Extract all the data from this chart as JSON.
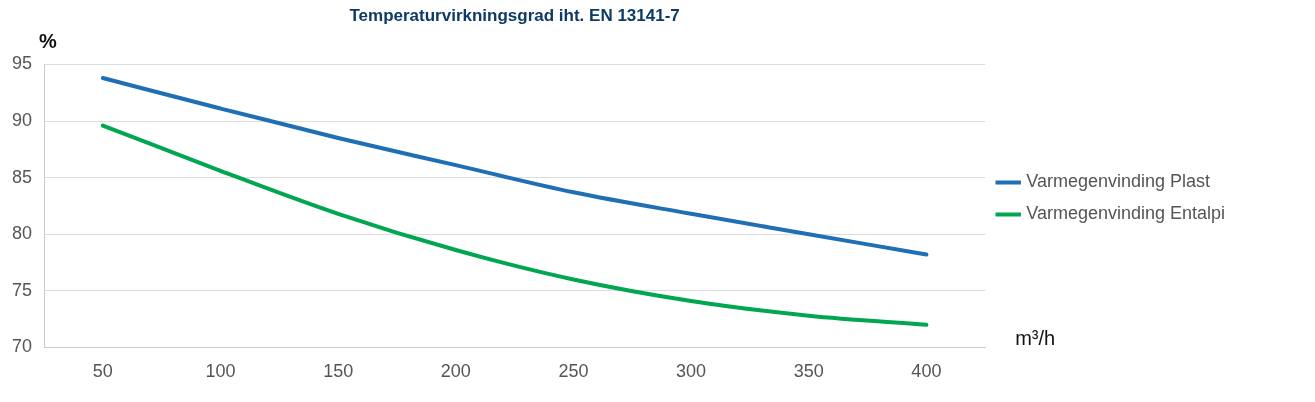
{
  "chart_data": {
    "type": "line",
    "title": "Temperaturvirkningsgrad iht. EN 13141-7",
    "xlabel": "m³/h",
    "ylabel": "%",
    "categories": [
      "50",
      "100",
      "150",
      "200",
      "250",
      "300",
      "350",
      "400"
    ],
    "series": [
      {
        "name": "Varmegenvinding Plast",
        "color": "#1f6fb5",
        "values": [
          93.8,
          91.1,
          88.5,
          86.1,
          83.7,
          81.8,
          80.0,
          78.2
        ]
      },
      {
        "name": "Varmegenvinding Entalpi",
        "color": "#00a650",
        "values": [
          89.6,
          85.6,
          81.8,
          78.6,
          76.0,
          74.1,
          72.8,
          72.0
        ]
      }
    ],
    "ylim": [
      70,
      95
    ],
    "yticks": [
      70,
      75,
      80,
      85,
      90,
      95
    ],
    "grid": "y",
    "legend": "right",
    "marker": "none",
    "line_style": "solid"
  }
}
